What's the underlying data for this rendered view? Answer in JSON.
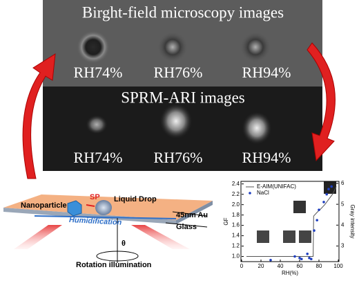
{
  "panel": {
    "brightfield_title": "Birght-field microscopy images",
    "brightfield_labels": [
      "RH74%",
      "RH76%",
      "RH94%"
    ],
    "sprm_title": "SPRM-ARI images",
    "sprm_labels": [
      "RH74%",
      "RH76%",
      "RH94%"
    ]
  },
  "schematic": {
    "nanoparticle": "Nanoparticle",
    "sp": "SP",
    "liquid_drop": "Liquid Drop",
    "gold": "45nm Au",
    "glass": "Glass",
    "humidification": "Humidification",
    "theta": "θ",
    "illumination": "Rotation illumination"
  },
  "chart_data": {
    "type": "line",
    "xlabel": "RH(%)",
    "ylabel": "GF",
    "y2label": "Gray intensity",
    "xlim": [
      0,
      100
    ],
    "xticks": [
      0,
      20,
      40,
      60,
      80,
      100
    ],
    "ylim": [
      0.9,
      2.45
    ],
    "yticks": [
      {
        "value": 1,
        "label": "1.0"
      },
      1.2,
      1.4,
      1.6,
      1.8,
      {
        "value": 2,
        "label": "2.0"
      },
      2.2,
      2.4
    ],
    "y2lim": [
      2.25,
      6.1
    ],
    "y2ticks": [
      3,
      4,
      5,
      6
    ],
    "series": [
      {
        "name": "E-AIM(UNIFAC)",
        "type": "line",
        "color": "#555555",
        "x": [
          5,
          20,
          40,
          60,
          70,
          74,
          74.5,
          78,
          82,
          86,
          90,
          94,
          98
        ],
        "values": [
          1.0,
          1.0,
          1.0,
          1.0,
          1.0,
          1.0,
          1.78,
          1.85,
          1.92,
          2.0,
          2.1,
          2.2,
          2.35
        ]
      },
      {
        "name": "NaCl",
        "type": "scatter",
        "color": "#1f3fbf",
        "x": [
          30,
          55,
          60,
          62,
          68,
          70,
          72,
          75,
          78,
          80,
          85,
          88,
          90,
          93
        ],
        "values": [
          0.93,
          1.0,
          0.97,
          0.95,
          1.05,
          0.97,
          0.95,
          1.5,
          1.7,
          1.9,
          2.05,
          2.2,
          2.3,
          2.35
        ]
      }
    ]
  }
}
